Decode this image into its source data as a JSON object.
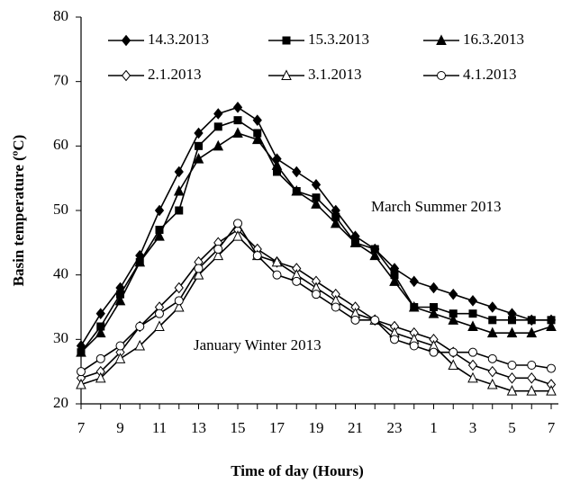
{
  "chart_data": {
    "type": "line",
    "x_label": "Time of day (Hours)",
    "y_label": "Basin temperature (ºC)",
    "annotations": [
      "March Summer 2013",
      "January Winter 2013"
    ],
    "categories": [
      "7",
      null,
      "9",
      null,
      "11",
      null,
      "13",
      null,
      "15",
      null,
      "17",
      null,
      "19",
      null,
      "21",
      null,
      "23",
      null,
      "1",
      null,
      "3",
      null,
      "5",
      null,
      "7"
    ],
    "ylim": [
      20,
      80
    ],
    "yticks": [
      20,
      30,
      40,
      50,
      60,
      70,
      80
    ],
    "grid": false,
    "legend": "top",
    "series": [
      {
        "name": "14.3.2013",
        "color": "#000000",
        "marker": "diamond",
        "filled": true,
        "values": [
          29,
          34,
          38,
          43,
          50,
          56,
          62,
          65,
          66,
          64,
          58,
          56,
          54,
          50,
          46,
          44,
          41,
          39,
          38,
          37,
          36,
          35,
          34,
          33,
          33
        ]
      },
      {
        "name": "15.3.2013",
        "color": "#000000",
        "marker": "square",
        "filled": true,
        "values": [
          28,
          32,
          37,
          42,
          47,
          50,
          60,
          63,
          64,
          62,
          56,
          53,
          52,
          49,
          45,
          44,
          40,
          35,
          35,
          34,
          34,
          33,
          33,
          33,
          33
        ]
      },
      {
        "name": "16.3.2013",
        "color": "#000000",
        "marker": "triangle",
        "filled": true,
        "values": [
          28,
          31,
          36,
          42,
          46,
          53,
          58,
          60,
          62,
          61,
          57,
          53,
          51,
          48,
          45,
          43,
          39,
          35,
          34,
          33,
          32,
          31,
          31,
          31,
          32
        ]
      },
      {
        "name": "2.1.2013",
        "color": "#000000",
        "marker": "diamond",
        "filled": false,
        "values": [
          24,
          25,
          28,
          32,
          35,
          38,
          42,
          45,
          47,
          44,
          42,
          41,
          39,
          37,
          35,
          33,
          32,
          31,
          30,
          28,
          26,
          25,
          24,
          24,
          23
        ]
      },
      {
        "name": "3.1.2013",
        "color": "#000000",
        "marker": "triangle",
        "filled": false,
        "values": [
          23,
          24,
          27,
          29,
          32,
          35,
          40,
          43,
          46,
          43,
          42,
          40,
          38,
          36,
          34,
          33,
          31,
          30,
          29,
          26,
          24,
          23,
          22,
          22,
          22
        ]
      },
      {
        "name": "4.1.2013",
        "color": "#000000",
        "marker": "circle",
        "filled": false,
        "values": [
          25,
          27,
          29,
          32,
          34,
          36,
          41,
          44,
          48,
          43,
          40,
          39,
          37,
          35,
          33,
          33,
          30,
          29,
          28,
          28,
          28,
          27,
          26,
          26,
          25.5
        ]
      }
    ]
  }
}
